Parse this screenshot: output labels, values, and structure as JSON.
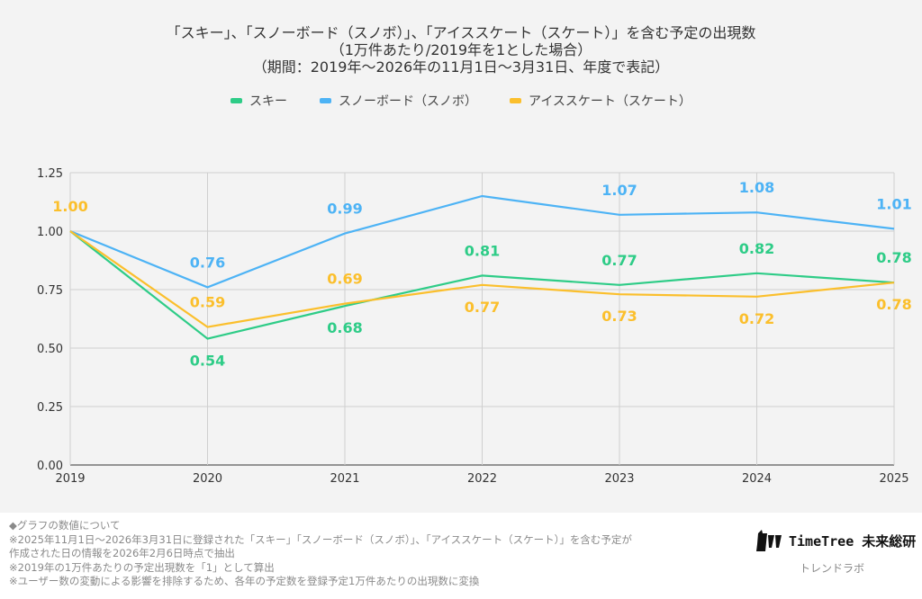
{
  "chart_data": {
    "type": "line",
    "title": [
      "「スキー」、「スノーボード（スノボ）」、「アイススケート（スケート）」を含む予定の出現数",
      "（1万件あたり/2019年を1とした場合）",
      "（期間：2019年〜2026年の11月1日〜3月31日、年度で表記）"
    ],
    "x": [
      "2019",
      "2020",
      "2021",
      "2022",
      "2023",
      "2024",
      "2025"
    ],
    "ylim": [
      0,
      1.25
    ],
    "yticks": [
      "0.00",
      "0.25",
      "0.50",
      "0.75",
      "1.00",
      "1.25"
    ],
    "grid": true,
    "legend_position": "top-center",
    "series": [
      {
        "name": "スキー",
        "color": "#2ecc87",
        "values": [
          1.0,
          0.54,
          0.68,
          0.81,
          0.77,
          0.82,
          0.78
        ],
        "labels": [
          null,
          "0.54",
          "0.68",
          "0.81",
          "0.77",
          "0.82",
          "0.78"
        ],
        "label_pos": [
          null,
          "below",
          "below",
          "above",
          "above",
          "above",
          "above"
        ]
      },
      {
        "name": "スノーボード（スノボ）",
        "color": "#4db3f5",
        "values": [
          1.0,
          0.76,
          0.99,
          1.15,
          1.07,
          1.08,
          1.01
        ],
        "labels": [
          null,
          "0.76",
          "0.99",
          null,
          "1.07",
          "1.08",
          "1.01"
        ],
        "label_pos": [
          null,
          "above",
          "above",
          null,
          "above",
          "above",
          "above"
        ]
      },
      {
        "name": "アイススケート（スケート）",
        "color": "#fbbf2c",
        "values": [
          1.0,
          0.59,
          0.69,
          0.77,
          0.73,
          0.72,
          0.78
        ],
        "labels": [
          "1.00",
          "0.59",
          "0.69",
          "0.77",
          "0.73",
          "0.72",
          "0.78"
        ],
        "label_pos": [
          "above",
          "above",
          "above",
          "below",
          "below",
          "below",
          "below"
        ]
      }
    ]
  },
  "footer": {
    "lines": [
      "◆グラフの数値について",
      "※2025年11月1日〜2026年3月31日に登録された「スキー」「スノーボード（スノボ）」、「アイススケート（スケート）」を含む予定が",
      "作成された日の情報を2026年2月6日時点で抽出",
      "※2019年の1万件あたりの予定出現数を「1」として算出",
      "※ユーザー数の変動による影響を排除するため、各年の予定数を登録予定1万件あたりの出現数に変換"
    ]
  },
  "logo": {
    "brand": "TimeTree 未来総研",
    "sub": "トレンドラボ"
  }
}
